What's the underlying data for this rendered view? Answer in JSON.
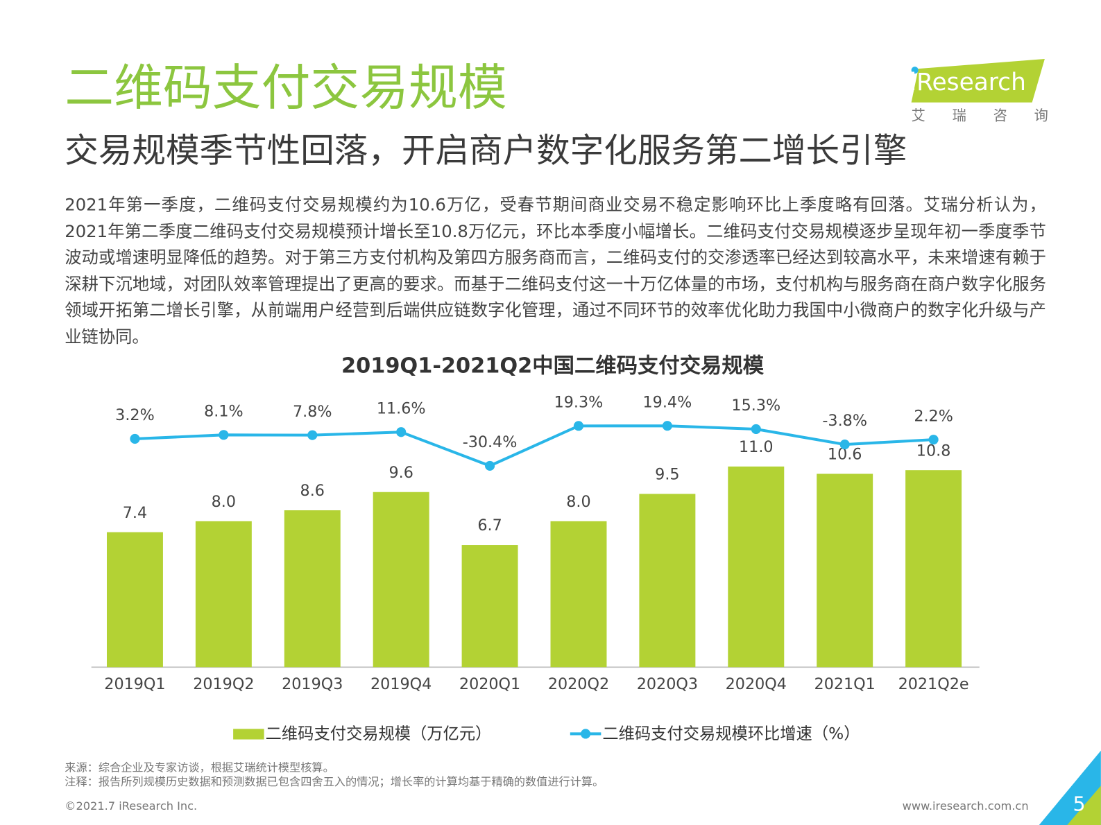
{
  "header": {
    "title": "二维码支付交易规模",
    "subtitle": "交易规模季节性回落，开启商户数字化服务第二增长引擎"
  },
  "logo": {
    "name": "iResearch",
    "cn": "艾 瑞 咨 询"
  },
  "body": "2021年第一季度，二维码支付交易规模约为10.6万亿，受春节期间商业交易不稳定影响环比上季度略有回落。艾瑞分析认为，2021年第二季度二维码支付交易规模预计增长至10.8万亿元，环比本季度小幅增长。二维码支付交易规模逐步呈现年初一季度季节波动或增速明显降低的趋势。对于第三方支付机构及第四方服务商而言，二维码支付的交渗透率已经达到较高水平，未来增速有赖于深耕下沉地域，对团队效率管理提出了更高的要求。而基于二维码支付这一十万亿体量的市场，支付机构与服务商在商户数字化服务领域开拓第二增长引擎，从前端用户经营到后端供应链数字化管理，通过不同环节的效率优化助力我国中小微商户的数字化升级与产业链协同。",
  "chart_data": {
    "type": "bar",
    "title": "2019Q1-2021Q2中国二维码支付交易规模",
    "categories": [
      "2019Q1",
      "2019Q2",
      "2019Q3",
      "2019Q4",
      "2020Q1",
      "2020Q2",
      "2020Q3",
      "2020Q4",
      "2021Q1",
      "2021Q2e"
    ],
    "series": [
      {
        "name": "二维码支付交易规模（万亿元）",
        "type": "bar",
        "color": "#b3d234",
        "values": [
          7.4,
          8.0,
          8.6,
          9.6,
          6.7,
          8.0,
          9.5,
          11.0,
          10.6,
          10.8
        ],
        "value_labels": [
          "7.4",
          "8.0",
          "8.6",
          "9.6",
          "6.7",
          "8.0",
          "9.5",
          "11.0",
          "10.6",
          "10.8"
        ]
      },
      {
        "name": "二维码支付交易规模环比增速（%）",
        "type": "line",
        "axis": "y2",
        "color": "#29b6e8",
        "values": [
          3.2,
          8.1,
          7.8,
          11.6,
          -30.4,
          19.3,
          19.4,
          15.3,
          -3.8,
          2.2
        ],
        "value_labels": [
          "3.2%",
          "8.1%",
          "7.8%",
          "11.6%",
          "-30.4%",
          "19.3%",
          "19.4%",
          "15.3%",
          "-3.8%",
          "2.2%"
        ]
      }
    ]
  },
  "notes": [
    "来源：综合企业及专家访谈，根据艾瑞统计模型核算。",
    "注释：报告所列规模历史数据和预测数据已包含四舍五入的情况；增长率的计算均基于精确的数值进行计算。"
  ],
  "footer": {
    "copyright": "©2021.7 iResearch Inc.",
    "url": "www.iresearch.com.cn",
    "page": "5"
  }
}
